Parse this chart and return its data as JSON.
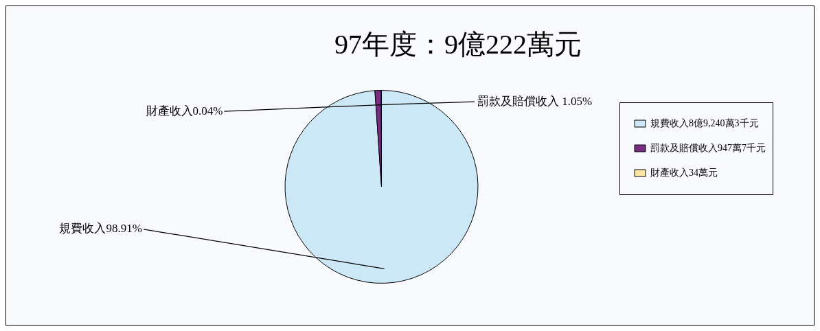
{
  "chart_data": {
    "type": "pie",
    "title": "97年度：9億222萬元",
    "categories": [
      "規費收入8億9,240萬3千元",
      "罰款及賠償收入947萬7千元",
      "財產收入34萬元"
    ],
    "values": [
      98.91,
      1.05,
      0.04
    ],
    "value_labels": [
      "規費收入98.91%",
      "罰款及賠償收入 1.05%",
      "財產收入0.04%"
    ],
    "colors": [
      "#cce8f6",
      "#7a2c82",
      "#fbe7a1"
    ],
    "legend": "right"
  }
}
